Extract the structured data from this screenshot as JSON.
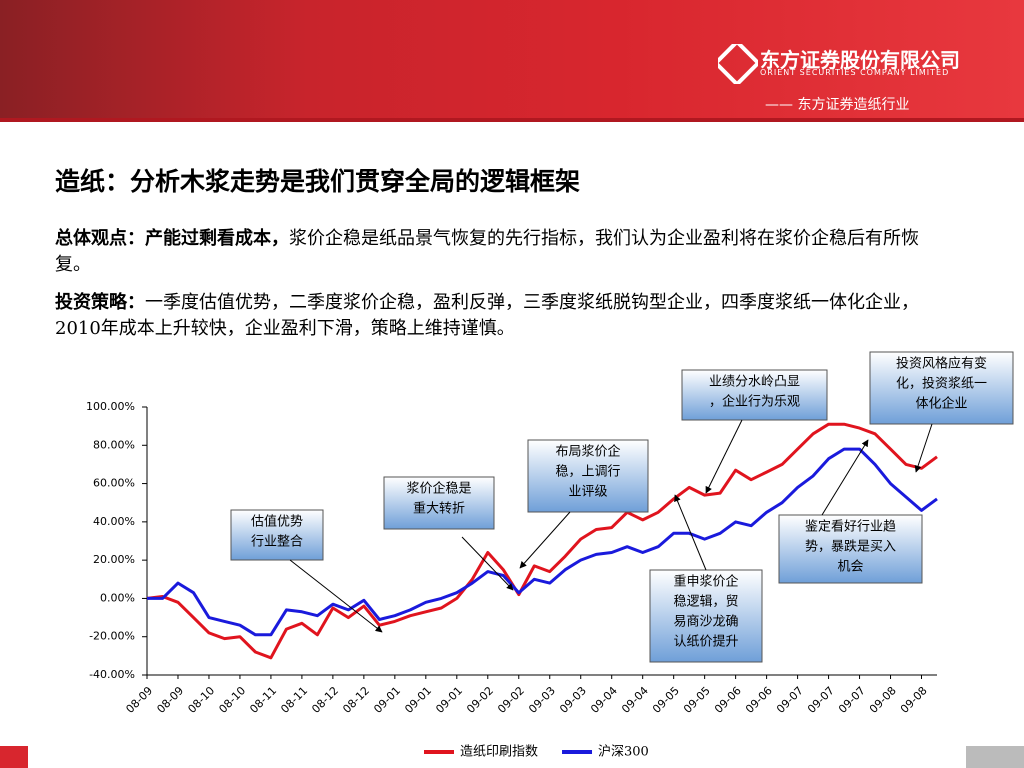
{
  "header": {
    "company": "东方证券股份有限公司",
    "company_en": "ORIENT SECURITIES COMPANY LIMITED",
    "section": "—— 东方证券造纸行业"
  },
  "title": "造纸：分析木浆走势是我们贯穿全局的逻辑框架",
  "paragraphs": [
    {
      "lead": "总体观点：产能过剩看成本，",
      "text": "浆价企稳是纸品景气恢复的先行指标，我们认为企业盈利将在浆价企稳后有所恢复。"
    },
    {
      "lead": "投资策略：",
      "text": "一季度估值优势，二季度浆价企稳，盈利反弹，三季度浆纸脱钩型企业，四季度浆纸一体化企业，2010年成本上升较快，企业盈利下滑，策略上维持谨慎。"
    }
  ],
  "chart_data": {
    "type": "line",
    "categories": [
      "08-09",
      null,
      "08-09",
      null,
      "08-10",
      null,
      "08-10",
      null,
      "08-11",
      null,
      "08-11",
      null,
      "08-12",
      null,
      "08-12",
      null,
      "09-01",
      null,
      "09-01",
      null,
      "09-01",
      null,
      "09-02",
      null,
      "09-02",
      null,
      "09-03",
      null,
      "09-03",
      null,
      "09-04",
      null,
      "09-04",
      null,
      "09-05",
      null,
      "09-05",
      null,
      "09-06",
      null,
      "09-06",
      null,
      "09-07",
      null,
      "09-07",
      null,
      "09-07",
      null,
      "09-08",
      null,
      "09-08",
      null
    ],
    "series": [
      {
        "name": "造纸印刷指数",
        "color": "#e0141e",
        "values": [
          0,
          1,
          -2,
          -10,
          -18,
          -21,
          -20,
          -28,
          -31,
          -16,
          -13,
          -19,
          -5,
          -10,
          -4,
          -14,
          -12,
          -9,
          -7,
          -5,
          0,
          10,
          24,
          15,
          2,
          17,
          14,
          22,
          31,
          36,
          37,
          45,
          41,
          45,
          52,
          58,
          54,
          55,
          67,
          62,
          66,
          70,
          78,
          86,
          91,
          91,
          89,
          86,
          78,
          70,
          68,
          74
        ]
      },
      {
        "name": "沪深300",
        "color": "#1a1adc",
        "values": [
          0,
          0,
          8,
          3,
          -10,
          -12,
          -14,
          -19,
          -19,
          -6,
          -7,
          -9,
          -3,
          -6,
          -1,
          -11,
          -9,
          -6,
          -2,
          0,
          3,
          8,
          14,
          12,
          3,
          10,
          8,
          15,
          20,
          23,
          24,
          27,
          24,
          27,
          34,
          34,
          31,
          34,
          40,
          38,
          45,
          50,
          58,
          64,
          73,
          78,
          78,
          70,
          60,
          53,
          46,
          52
        ]
      }
    ],
    "ylim": [
      -40,
      100
    ],
    "yticks": [
      {
        "value": -40,
        "label": "-40.00%"
      },
      {
        "value": -20,
        "label": "-20.00%"
      },
      {
        "value": 0,
        "label": "0.00%"
      },
      {
        "value": 20,
        "label": "20.00%"
      },
      {
        "value": 40,
        "label": "40.00%"
      },
      {
        "value": 60,
        "label": "60.00%"
      },
      {
        "value": 80,
        "label": "80.00%"
      },
      {
        "value": 100,
        "label": "100.00%"
      }
    ],
    "annotations": [
      {
        "lines": [
          "估值优势",
          "行业整合"
        ]
      },
      {
        "lines": [
          "浆价企稳是",
          "重大转折"
        ]
      },
      {
        "lines": [
          "布局浆价企",
          "稳，上调行",
          "业评级"
        ]
      },
      {
        "lines": [
          "业绩分水岭凸显",
          "，企业行为乐观"
        ]
      },
      {
        "lines": [
          "投资风格应有变",
          "化，投资浆纸一",
          "体化企业"
        ]
      },
      {
        "lines": [
          "鉴定看好行业趋",
          "势，暴跌是买入",
          "机会"
        ]
      },
      {
        "lines": [
          "重申浆价企",
          "稳逻辑，贸",
          "易商沙龙确",
          "认纸价提升"
        ]
      }
    ]
  }
}
